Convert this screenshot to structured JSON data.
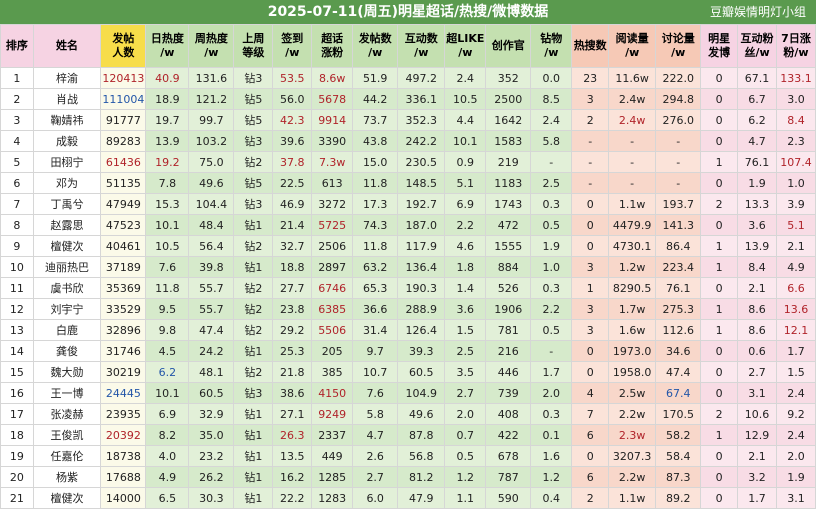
{
  "title": "2025-07-11(周五)明星超话/热搜/微博数据",
  "source": "豆瓣娱情明灯小组",
  "headers": [
    {
      "label": "排序",
      "group": "rank"
    },
    {
      "label": "姓名",
      "group": "name"
    },
    {
      "label": "发帖\n人数",
      "group": "posts"
    },
    {
      "label": "日热度\n/w",
      "group": "g"
    },
    {
      "label": "周热度\n/w",
      "group": "g"
    },
    {
      "label": "上周\n等级",
      "group": "g"
    },
    {
      "label": "签到\n/w",
      "group": "g"
    },
    {
      "label": "超话\n涨粉",
      "group": "g"
    },
    {
      "label": "发帖数\n/w",
      "group": "g"
    },
    {
      "label": "互动数\n/w",
      "group": "g"
    },
    {
      "label": "超LIKE\n/w",
      "group": "g"
    },
    {
      "label": "创作官",
      "group": "g"
    },
    {
      "label": "钻物\n/w",
      "group": "g"
    },
    {
      "label": "热搜数",
      "group": "p"
    },
    {
      "label": "阅读量\n/w",
      "group": "p"
    },
    {
      "label": "讨论量\n/w",
      "group": "p"
    },
    {
      "label": "明星\n发博",
      "group": "s"
    },
    {
      "label": "互动粉\n丝/w",
      "group": "s"
    },
    {
      "label": "7日涨\n粉/w",
      "group": "s"
    }
  ],
  "rows": [
    {
      "cells": [
        "1",
        "梓渝",
        "120413",
        "40.9",
        "131.6",
        "钻3",
        "53.5",
        "8.6w",
        "51.9",
        "497.2",
        "2.4",
        "352",
        "0.0",
        "23",
        "11.6w",
        "222.0",
        "0",
        "67.1",
        "133.1"
      ],
      "red": [
        2,
        3,
        6,
        7,
        18
      ]
    },
    {
      "cells": [
        "2",
        "肖战",
        "111004",
        "18.9",
        "121.2",
        "钻5",
        "56.0",
        "5678",
        "44.2",
        "336.1",
        "10.5",
        "2500",
        "8.5",
        "3",
        "2.4w",
        "294.8",
        "0",
        "6.7",
        "3.0"
      ],
      "red": [
        7
      ],
      "blue": [
        2
      ]
    },
    {
      "cells": [
        "3",
        "鞠婧祎",
        "91777",
        "19.7",
        "99.7",
        "钻5",
        "42.3",
        "9914",
        "73.7",
        "352.3",
        "4.4",
        "1642",
        "2.4",
        "2",
        "2.4w",
        "276.0",
        "0",
        "6.2",
        "8.4"
      ],
      "red": [
        6,
        7,
        14,
        18
      ]
    },
    {
      "cells": [
        "4",
        "成毅",
        "89283",
        "13.9",
        "103.2",
        "钻3",
        "39.6",
        "3390",
        "43.8",
        "242.2",
        "10.1",
        "1583",
        "5.8",
        "-",
        "-",
        "-",
        "0",
        "4.7",
        "2.3"
      ]
    },
    {
      "cells": [
        "5",
        "田栩宁",
        "61436",
        "19.2",
        "75.0",
        "钻2",
        "37.8",
        "7.3w",
        "15.0",
        "230.5",
        "0.9",
        "219",
        "-",
        "-",
        "-",
        "-",
        "1",
        "76.1",
        "107.4"
      ],
      "red": [
        2,
        3,
        6,
        7,
        18
      ]
    },
    {
      "cells": [
        "6",
        "邓为",
        "51135",
        "7.8",
        "49.6",
        "钻5",
        "22.5",
        "613",
        "11.8",
        "148.5",
        "5.1",
        "1183",
        "2.5",
        "-",
        "-",
        "-",
        "0",
        "1.9",
        "1.0"
      ]
    },
    {
      "cells": [
        "7",
        "丁禹兮",
        "47949",
        "15.3",
        "104.4",
        "钻3",
        "46.9",
        "3272",
        "17.3",
        "192.7",
        "6.9",
        "1743",
        "0.3",
        "0",
        "1.1w",
        "193.7",
        "2",
        "13.3",
        "3.9"
      ]
    },
    {
      "cells": [
        "8",
        "赵露思",
        "47523",
        "10.1",
        "48.4",
        "钻1",
        "21.4",
        "5725",
        "74.3",
        "187.0",
        "2.2",
        "472",
        "0.5",
        "0",
        "4479.9",
        "141.3",
        "0",
        "3.6",
        "5.1"
      ],
      "red": [
        7,
        18
      ]
    },
    {
      "cells": [
        "9",
        "檀健次",
        "40461",
        "10.5",
        "56.4",
        "钻2",
        "32.7",
        "2506",
        "11.8",
        "117.9",
        "4.6",
        "1555",
        "1.9",
        "0",
        "4730.1",
        "86.4",
        "1",
        "13.9",
        "2.1"
      ]
    },
    {
      "cells": [
        "10",
        "迪丽热巴",
        "37189",
        "7.6",
        "39.8",
        "钻1",
        "18.8",
        "2897",
        "63.2",
        "136.4",
        "1.8",
        "884",
        "1.0",
        "3",
        "1.2w",
        "223.4",
        "1",
        "8.4",
        "4.9"
      ]
    },
    {
      "cells": [
        "11",
        "虞书欣",
        "35369",
        "11.8",
        "55.7",
        "钻2",
        "27.7",
        "6746",
        "65.3",
        "190.3",
        "1.4",
        "526",
        "0.3",
        "1",
        "8290.5",
        "76.1",
        "0",
        "2.1",
        "6.6"
      ],
      "red": [
        7,
        18
      ]
    },
    {
      "cells": [
        "12",
        "刘宇宁",
        "33529",
        "9.5",
        "55.7",
        "钻2",
        "23.8",
        "6385",
        "36.6",
        "288.9",
        "3.6",
        "1906",
        "2.2",
        "3",
        "1.7w",
        "275.3",
        "1",
        "8.6",
        "13.6"
      ],
      "red": [
        7,
        18
      ]
    },
    {
      "cells": [
        "13",
        "白鹿",
        "32896",
        "9.8",
        "47.4",
        "钻2",
        "29.2",
        "5506",
        "31.4",
        "126.4",
        "1.5",
        "781",
        "0.5",
        "3",
        "1.6w",
        "112.6",
        "1",
        "8.6",
        "12.1"
      ],
      "red": [
        7,
        18
      ]
    },
    {
      "cells": [
        "14",
        "龚俊",
        "31746",
        "4.5",
        "24.2",
        "钻1",
        "25.3",
        "205",
        "9.7",
        "39.3",
        "2.5",
        "216",
        "-",
        "0",
        "1973.0",
        "34.6",
        "0",
        "0.6",
        "1.7"
      ]
    },
    {
      "cells": [
        "15",
        "魏大勋",
        "30219",
        "6.2",
        "48.1",
        "钻2",
        "21.8",
        "385",
        "10.7",
        "60.5",
        "3.5",
        "446",
        "1.7",
        "0",
        "1958.0",
        "47.4",
        "0",
        "2.7",
        "1.5"
      ],
      "blue": [
        3
      ]
    },
    {
      "cells": [
        "16",
        "王一博",
        "24445",
        "10.1",
        "60.5",
        "钻3",
        "38.6",
        "4150",
        "7.6",
        "104.9",
        "2.7",
        "739",
        "2.0",
        "4",
        "2.5w",
        "67.4",
        "0",
        "3.1",
        "2.4"
      ],
      "red": [
        7
      ],
      "blue": [
        2,
        15
      ]
    },
    {
      "cells": [
        "17",
        "张凌赫",
        "23935",
        "6.9",
        "32.9",
        "钻1",
        "27.1",
        "9249",
        "5.8",
        "49.6",
        "2.0",
        "408",
        "0.3",
        "7",
        "2.2w",
        "170.5",
        "2",
        "10.6",
        "9.2"
      ],
      "red": [
        7
      ]
    },
    {
      "cells": [
        "18",
        "王俊凯",
        "20392",
        "8.2",
        "35.0",
        "钻1",
        "26.3",
        "2337",
        "4.7",
        "87.8",
        "0.7",
        "422",
        "0.1",
        "6",
        "2.3w",
        "58.2",
        "1",
        "12.9",
        "2.4"
      ],
      "red": [
        2,
        6,
        14
      ]
    },
    {
      "cells": [
        "19",
        "任嘉伦",
        "18738",
        "4.0",
        "23.2",
        "钻1",
        "13.5",
        "449",
        "2.6",
        "56.8",
        "0.5",
        "678",
        "1.6",
        "0",
        "3207.3",
        "58.4",
        "0",
        "2.1",
        "2.0"
      ]
    },
    {
      "cells": [
        "20",
        "杨紫",
        "17688",
        "4.9",
        "26.2",
        "钻1",
        "16.2",
        "1285",
        "2.7",
        "81.2",
        "1.2",
        "787",
        "1.2",
        "6",
        "2.2w",
        "87.3",
        "0",
        "3.2",
        "1.9"
      ]
    },
    {
      "cells": [
        "21",
        "檀健次",
        "14000",
        "6.5",
        "30.3",
        "钻1",
        "22.2",
        "1283",
        "6.0",
        "47.9",
        "1.1",
        "590",
        "0.4",
        "2",
        "1.1w",
        "89.2",
        "0",
        "1.7",
        "3.1"
      ]
    }
  ]
}
